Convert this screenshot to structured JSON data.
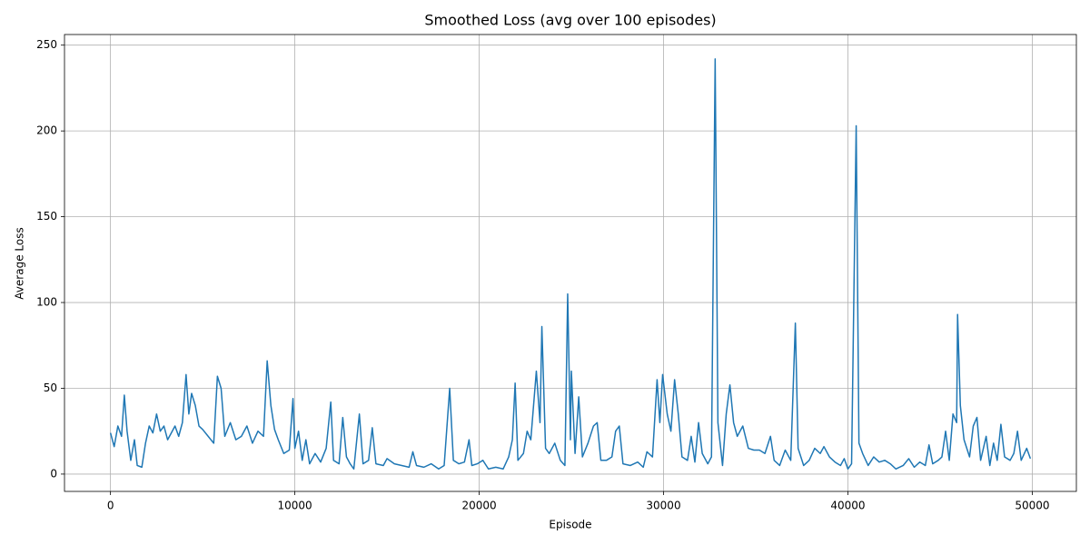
{
  "chart_data": {
    "type": "line",
    "title": "Smoothed Loss (avg over 100 episodes)",
    "xlabel": "Episode",
    "ylabel": "Average Loss",
    "color": "#1f77b4",
    "grid": true,
    "xlim": [
      -2495,
      52394
    ],
    "ylim": [
      -10.1,
      256.2
    ],
    "xticks": [
      0,
      10000,
      20000,
      30000,
      40000,
      50000
    ],
    "yticks": [
      0,
      50,
      100,
      150,
      200,
      250
    ],
    "x": [
      0,
      200,
      400,
      600,
      750,
      900,
      1100,
      1300,
      1450,
      1700,
      1900,
      2100,
      2300,
      2500,
      2700,
      2900,
      3100,
      3300,
      3500,
      3700,
      3900,
      4100,
      4250,
      4400,
      4600,
      4800,
      5000,
      5300,
      5600,
      5800,
      6000,
      6200,
      6500,
      6800,
      7100,
      7400,
      7700,
      8000,
      8300,
      8500,
      8700,
      8900,
      9100,
      9400,
      9700,
      9900,
      10000,
      10200,
      10400,
      10600,
      10800,
      11100,
      11400,
      11700,
      11950,
      12100,
      12400,
      12600,
      12800,
      13000,
      13200,
      13500,
      13700,
      14000,
      14200,
      14400,
      14800,
      15000,
      15400,
      15800,
      16200,
      16400,
      16600,
      17000,
      17400,
      17800,
      18100,
      18400,
      18600,
      18900,
      19200,
      19450,
      19600,
      19900,
      20200,
      20500,
      20900,
      21300,
      21600,
      21800,
      21950,
      22100,
      22400,
      22600,
      22800,
      23100,
      23300,
      23400,
      23600,
      23800,
      24100,
      24400,
      24650,
      24800,
      24950,
      25000,
      25200,
      25400,
      25600,
      25900,
      26200,
      26400,
      26600,
      26900,
      27200,
      27400,
      27600,
      27800,
      28200,
      28600,
      28900,
      29100,
      29400,
      29650,
      29800,
      29950,
      30200,
      30400,
      30600,
      30800,
      31000,
      31300,
      31500,
      31700,
      31900,
      32100,
      32400,
      32600,
      32800,
      32950,
      33200,
      33400,
      33600,
      33800,
      34000,
      34300,
      34600,
      34900,
      35200,
      35500,
      35800,
      36000,
      36300,
      36600,
      36900,
      37150,
      37300,
      37600,
      37900,
      38200,
      38500,
      38700,
      39000,
      39300,
      39600,
      39800,
      40000,
      40200,
      40450,
      40600,
      40800,
      41100,
      41400,
      41700,
      42000,
      42300,
      42600,
      43000,
      43300,
      43600,
      43900,
      44200,
      44400,
      44600,
      44900,
      45100,
      45300,
      45500,
      45700,
      45900,
      45950,
      46100,
      46300,
      46600,
      46800,
      47000,
      47200,
      47500,
      47700,
      47900,
      48100,
      48300,
      48500,
      48800,
      49000,
      49200,
      49400,
      49700,
      49900
    ],
    "values": [
      24,
      16,
      28,
      22,
      46,
      25,
      8,
      20,
      5,
      4,
      18,
      28,
      24,
      35,
      25,
      28,
      20,
      24,
      28,
      22,
      30,
      58,
      35,
      47,
      40,
      28,
      26,
      22,
      18,
      57,
      50,
      22,
      30,
      20,
      22,
      28,
      18,
      25,
      22,
      66,
      40,
      26,
      20,
      12,
      14,
      44,
      15,
      25,
      8,
      20,
      6,
      12,
      7,
      15,
      42,
      8,
      6,
      33,
      10,
      6,
      3,
      35,
      6,
      8,
      27,
      6,
      5,
      9,
      6,
      5,
      4,
      13,
      5,
      4,
      6,
      3,
      5,
      50,
      8,
      6,
      7,
      20,
      5,
      6,
      8,
      3,
      4,
      3,
      10,
      20,
      53,
      8,
      12,
      25,
      20,
      60,
      30,
      86,
      15,
      12,
      18,
      8,
      5,
      105,
      20,
      60,
      12,
      45,
      10,
      18,
      28,
      30,
      8,
      8,
      10,
      25,
      28,
      6,
      5,
      7,
      4,
      13,
      10,
      55,
      30,
      58,
      35,
      25,
      55,
      35,
      10,
      8,
      22,
      7,
      30,
      12,
      6,
      10,
      242,
      30,
      5,
      35,
      52,
      30,
      22,
      28,
      15,
      14,
      14,
      12,
      22,
      8,
      5,
      14,
      8,
      88,
      15,
      5,
      8,
      15,
      12,
      16,
      10,
      7,
      5,
      9,
      3,
      6,
      203,
      18,
      12,
      5,
      10,
      7,
      8,
      6,
      3,
      5,
      9,
      4,
      7,
      5,
      17,
      6,
      8,
      10,
      25,
      8,
      35,
      30,
      93,
      40,
      20,
      10,
      28,
      33,
      8,
      22,
      5,
      18,
      8,
      29,
      10,
      8,
      12,
      25,
      8,
      15,
      9
    ]
  }
}
